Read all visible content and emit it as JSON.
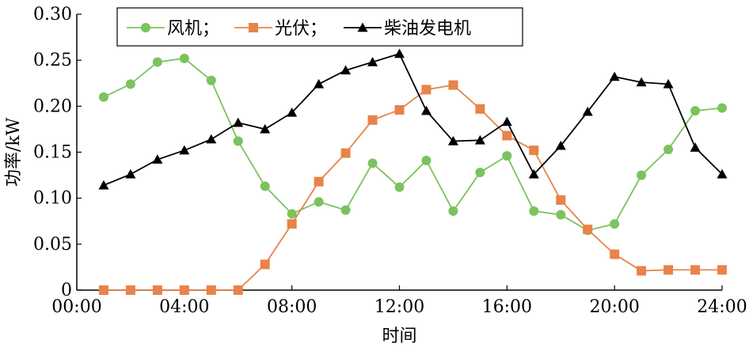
{
  "chart_data": {
    "type": "line",
    "xlabel": "时间",
    "ylabel": "功率/kW",
    "ylim": [
      0,
      0.3
    ],
    "xlim": [
      0,
      24
    ],
    "yticks": [
      0,
      0.05,
      0.1,
      0.15,
      0.2,
      0.25,
      0.3
    ],
    "ytick_labels": [
      "0",
      "0.05",
      "0.10",
      "0.15",
      "0.20",
      "0.25",
      "0.30"
    ],
    "xticks": [
      0,
      4,
      8,
      12,
      16,
      20,
      24
    ],
    "xtick_labels": [
      "00:00",
      "04:00",
      "08:00",
      "12:00",
      "16:00",
      "20:00",
      "24:00"
    ],
    "legend_position": "top-center",
    "x": [
      1,
      2,
      3,
      4,
      5,
      6,
      7,
      8,
      9,
      10,
      11,
      12,
      13,
      14,
      15,
      16,
      17,
      18,
      19,
      20,
      21,
      22,
      23,
      24
    ],
    "series": [
      {
        "name": "风机；",
        "color": "#7ac35d",
        "marker": "circle",
        "values": [
          0.21,
          0.224,
          0.248,
          0.252,
          0.228,
          0.162,
          0.113,
          0.083,
          0.096,
          0.087,
          0.138,
          0.112,
          0.141,
          0.086,
          0.128,
          0.146,
          0.086,
          0.082,
          0.065,
          0.072,
          0.125,
          0.153,
          0.195,
          0.198
        ]
      },
      {
        "name": "光伏；",
        "color": "#e8834a",
        "marker": "square",
        "values": [
          0,
          0,
          0,
          0,
          0,
          0,
          0.028,
          0.072,
          0.118,
          0.149,
          0.185,
          0.196,
          0.218,
          0.223,
          0.197,
          0.168,
          0.152,
          0.098,
          0.066,
          0.039,
          0.021,
          0.022,
          0.022,
          0.022
        ]
      },
      {
        "name": "柴油发电机",
        "color": "#000000",
        "marker": "triangle",
        "values": [
          0.114,
          0.126,
          0.142,
          0.152,
          0.164,
          0.182,
          0.175,
          0.193,
          0.224,
          0.239,
          0.248,
          0.257,
          0.195,
          0.162,
          0.163,
          0.183,
          0.126,
          0.157,
          0.194,
          0.232,
          0.226,
          0.224,
          0.155,
          0.126
        ]
      }
    ]
  }
}
